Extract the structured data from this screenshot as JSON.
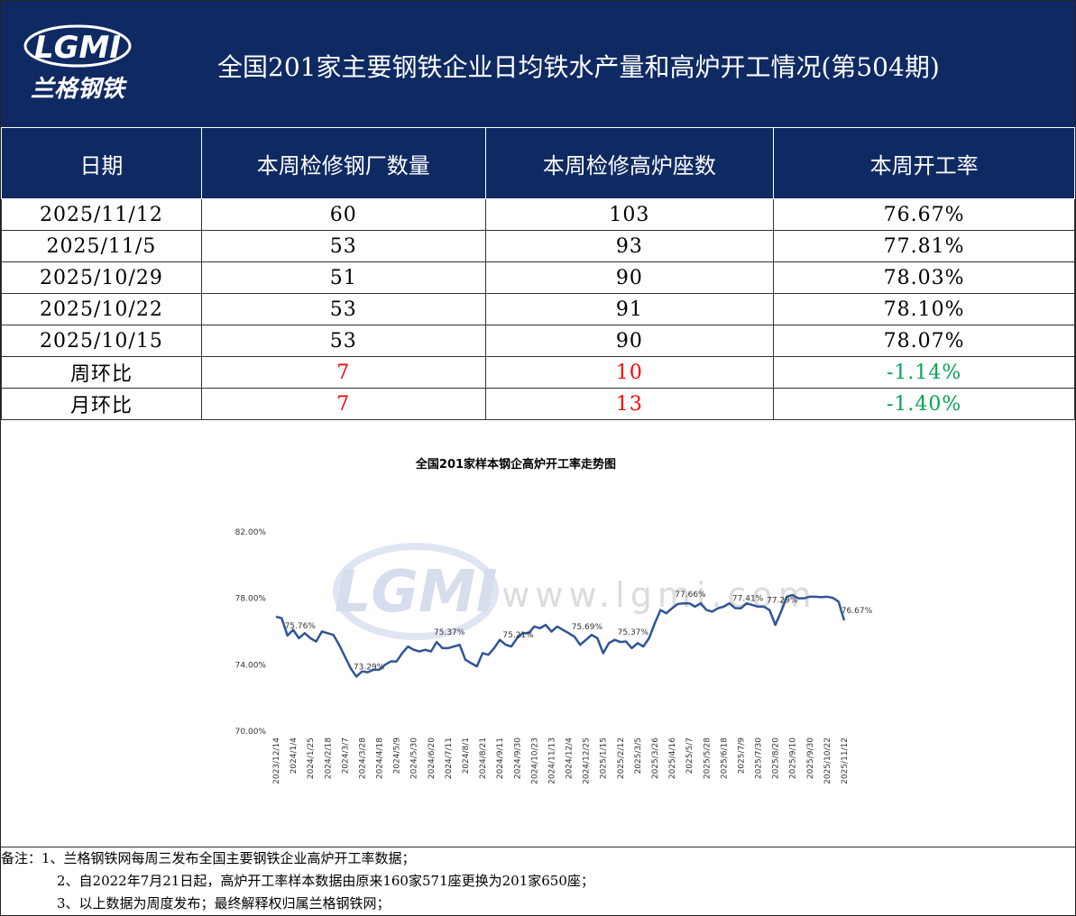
{
  "header": {
    "logo": "LGMI",
    "logo_sub": "兰格钢铁",
    "title": "全国201家主要钢铁企业日均铁水产量和高炉开工情况(第504期)"
  },
  "table": {
    "columns": [
      "日期",
      "本周检修钢厂数量",
      "本周检修高炉座数",
      "本周开工率"
    ],
    "rows": [
      {
        "cells": [
          "2025/11/12",
          "60",
          "103",
          "76.67%"
        ]
      },
      {
        "cells": [
          "2025/11/5",
          "53",
          "93",
          "77.81%"
        ]
      },
      {
        "cells": [
          "2025/10/29",
          "51",
          "90",
          "78.03%"
        ]
      },
      {
        "cells": [
          "2025/10/22",
          "53",
          "91",
          "78.10%"
        ]
      },
      {
        "cells": [
          "2025/10/15",
          "53",
          "90",
          "78.07%"
        ]
      },
      {
        "cells": [
          "周环比",
          "7",
          "10",
          "-1.14%"
        ],
        "colors": [
          "#000000",
          "#ff0000",
          "#ff0000",
          "#00a650"
        ]
      },
      {
        "cells": [
          "月环比",
          "7",
          "13",
          "-1.40%"
        ],
        "colors": [
          "#000000",
          "#ff0000",
          "#ff0000",
          "#00a650"
        ]
      }
    ]
  },
  "chart_data": {
    "type": "line",
    "title": "全国201家样本钢企高炉开工率走势图",
    "watermark": [
      "LGMI",
      "www.lgmi.com"
    ],
    "categories": [
      "2023/12/14",
      null,
      null,
      "2024/1/4",
      null,
      null,
      "2024/1/25",
      null,
      null,
      "2024/2/18",
      null,
      null,
      "2024/3/7",
      null,
      null,
      "2024/3/28",
      null,
      null,
      "2024/4/18",
      null,
      null,
      "2024/5/9",
      null,
      null,
      "2024/5/30",
      null,
      null,
      "2024/6/20",
      null,
      null,
      "2024/7/11",
      null,
      null,
      "2024/8/1",
      null,
      null,
      "2024/8/21",
      null,
      null,
      "2024/9/11",
      null,
      null,
      "2024/9/30",
      null,
      null,
      "2024/10/23",
      null,
      null,
      "2024/11/13",
      null,
      null,
      "2024/12/4",
      null,
      null,
      "2024/12/25",
      null,
      null,
      "2025/1/15",
      null,
      null,
      "2025/2/12",
      null,
      null,
      "2025/3/5",
      null,
      null,
      "2025/3/26",
      null,
      null,
      "2025/4/16",
      null,
      null,
      "2025/5/7",
      null,
      null,
      "2025/5/28",
      null,
      null,
      "2025/6/18",
      null,
      null,
      "2025/7/9",
      null,
      null,
      "2025/7/30",
      null,
      null,
      "2025/8/20",
      null,
      null,
      "2025/9/10",
      null,
      null,
      "2025/9/30",
      null,
      null,
      "2025/10/22",
      null,
      null,
      "2025/11/12"
    ],
    "series": [
      {
        "name": "开工率",
        "color": "#2f5597",
        "values": [
          76.9,
          76.8,
          75.76,
          76.1,
          75.6,
          75.9,
          75.6,
          75.4,
          76.0,
          75.9,
          75.8,
          75.2,
          74.5,
          73.8,
          73.29,
          73.6,
          73.55,
          73.7,
          73.7,
          74.0,
          74.2,
          74.2,
          74.7,
          75.1,
          74.9,
          74.8,
          74.9,
          74.8,
          75.37,
          75.0,
          75.0,
          75.1,
          75.2,
          74.3,
          74.1,
          73.9,
          74.7,
          74.6,
          75.0,
          75.5,
          75.21,
          75.1,
          75.6,
          75.9,
          75.9,
          76.3,
          76.2,
          76.4,
          76.0,
          76.3,
          76.1,
          75.9,
          75.69,
          75.2,
          75.5,
          75.8,
          75.6,
          74.7,
          75.3,
          75.5,
          75.37,
          75.4,
          75.0,
          75.3,
          75.1,
          75.6,
          76.5,
          77.3,
          77.1,
          77.4,
          77.66,
          77.7,
          77.7,
          77.5,
          77.7,
          77.3,
          77.2,
          77.4,
          77.5,
          77.7,
          77.41,
          77.4,
          77.7,
          77.6,
          77.5,
          77.5,
          77.29,
          76.4,
          77.2,
          78.1,
          78.2,
          78.0,
          78.0,
          78.1,
          78.1,
          78.07,
          78.1,
          78.03,
          77.81,
          76.67
        ],
        "value_labels": [
          null,
          null,
          "75.76%",
          null,
          null,
          null,
          null,
          null,
          null,
          null,
          null,
          null,
          null,
          null,
          "73.29%",
          null,
          null,
          null,
          null,
          null,
          null,
          null,
          null,
          null,
          null,
          null,
          null,
          null,
          "75.37%",
          null,
          null,
          null,
          null,
          null,
          null,
          null,
          null,
          null,
          null,
          null,
          "75.21%",
          null,
          null,
          null,
          null,
          null,
          null,
          null,
          null,
          null,
          null,
          null,
          "75.69%",
          null,
          null,
          null,
          null,
          null,
          null,
          null,
          "75.37%",
          null,
          null,
          null,
          null,
          null,
          null,
          null,
          null,
          null,
          "77.66%",
          null,
          null,
          null,
          null,
          null,
          null,
          null,
          null,
          null,
          "77.41%",
          null,
          null,
          null,
          null,
          null,
          "77.29%",
          null,
          null,
          null,
          null,
          null,
          null,
          null,
          null,
          null,
          null,
          null,
          null,
          "76.67%"
        ]
      }
    ],
    "ylim": [
      70,
      82
    ],
    "yticks": [
      {
        "value": 70,
        "label": "70.00%"
      },
      {
        "value": 74,
        "label": "74.00%"
      },
      {
        "value": 78,
        "label": "78.00%"
      },
      {
        "value": 82,
        "label": "82.00%"
      }
    ],
    "grid": false
  },
  "notes": {
    "label": "备注：",
    "items": [
      "1、兰格钢铁网每周三发布全国主要钢铁企业高炉开工率数据；",
      "2、自2022年7月21日起，高炉开工率样本数据由原来160家571座更换为201家650座；",
      "3、以上数据为周度发布；最终解释权归属兰格钢铁网；"
    ]
  }
}
